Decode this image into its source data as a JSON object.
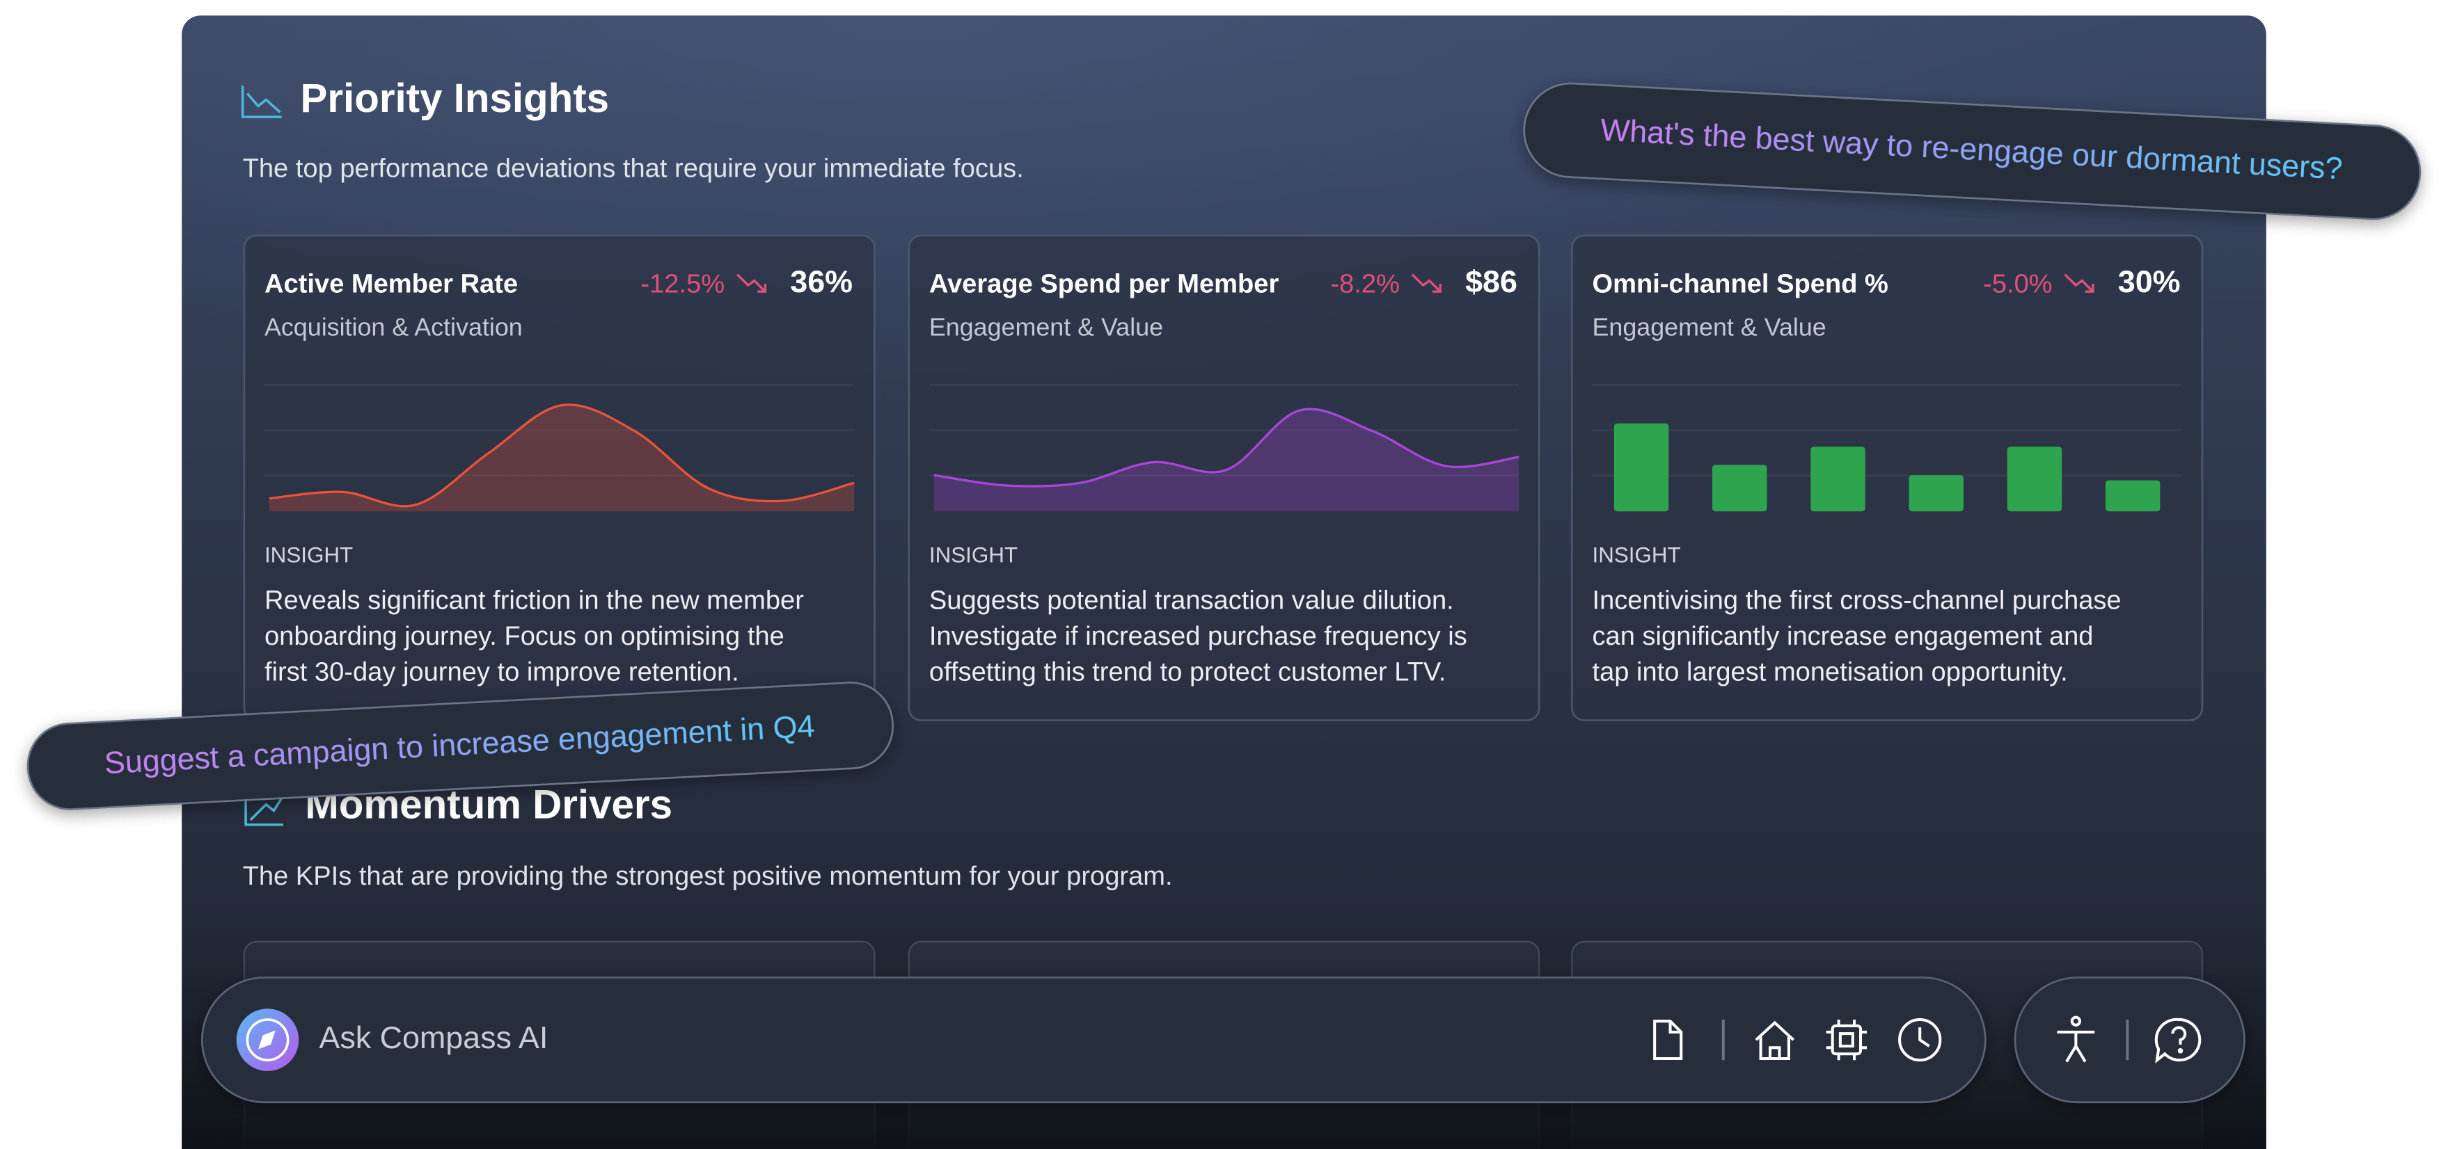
{
  "header": {
    "title": "Priority Insights",
    "subtitle": "The top performance deviations that require your immediate focus."
  },
  "cards": [
    {
      "title": "Active Member Rate",
      "change": "-12.5%",
      "value": "36%",
      "category": "Acquisition & Activation",
      "insight_label": "INSIGHT",
      "insight": [
        "Reveals significant friction in the new member",
        "onboarding journey. Focus on optimising the",
        "first 30-day journey to improve retention."
      ],
      "chart": {
        "type": "area",
        "color": "#e8533a",
        "values": [
          10,
          15,
          5,
          45,
          82,
          62,
          18,
          8,
          22
        ]
      }
    },
    {
      "title": "Average Spend per Member",
      "change": "-8.2%",
      "value": "$86",
      "category": "Engagement & Value",
      "insight_label": "INSIGHT",
      "insight": [
        "Suggests potential transaction value dilution.",
        "Investigate if increased purchase frequency is",
        "offsetting this trend to protect customer LTV."
      ],
      "chart": {
        "type": "area",
        "color": "#a846d8",
        "values": [
          28,
          20,
          22,
          38,
          32,
          78,
          62,
          35,
          42
        ]
      }
    },
    {
      "title": "Omni-channel Spend %",
      "change": "-5.0%",
      "value": "30%",
      "category": "Engagement & Value",
      "insight_label": "INSIGHT",
      "insight": [
        "Incentivising the first cross-channel purchase",
        "can significantly increase engagement and",
        "tap into largest monetisation opportunity."
      ],
      "chart": {
        "type": "bar",
        "color": "#2ea44f",
        "values": [
          68,
          36,
          50,
          28,
          50,
          24
        ]
      }
    }
  ],
  "section2": {
    "title": "Momentum Drivers",
    "subtitle": "The KPIs that are providing the strongest positive momentum for your program."
  },
  "prompts": [
    "What's the best way to re-engage our dormant users?",
    "Suggest a campaign to increase engagement in Q4"
  ],
  "ask_bar": {
    "placeholder": "Ask Compass AI"
  }
}
